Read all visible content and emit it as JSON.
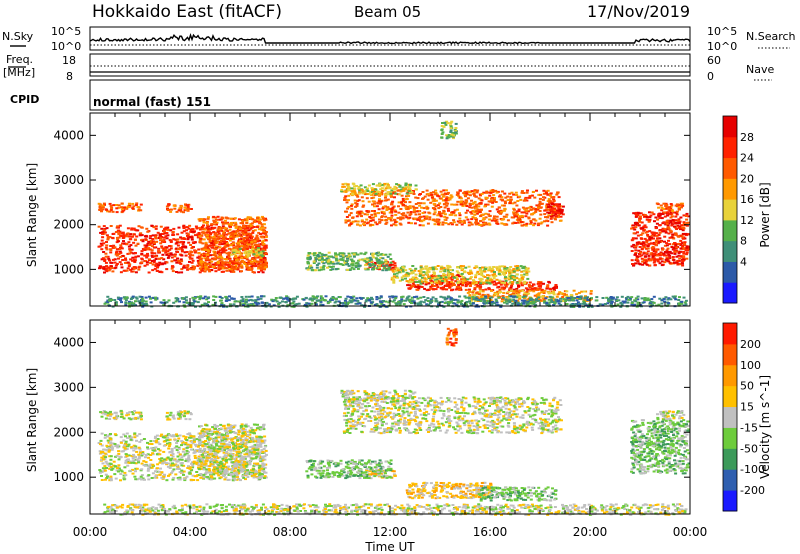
{
  "header": {
    "station": "Hokkaido East (fitACF)",
    "beam": "Beam 05",
    "date": "17/Nov/2019"
  },
  "top_panels": {
    "nsky_label": "N.Sky",
    "nsky_ticks": [
      "10^5",
      "10^0"
    ],
    "nsearch_label": "N.Search",
    "nsearch_ticks": [
      "10^5",
      "10^0"
    ],
    "freq_label": "Freq.",
    "freq_unit": "[MHz]",
    "freq_ticks": [
      "18",
      "8"
    ],
    "nave_label": "Nave",
    "nave_ticks": [
      "60",
      "0"
    ],
    "cpid_label": "CPID",
    "cpid_value": "normal (fast) 151"
  },
  "chart_data": [
    {
      "type": "heatmap",
      "panel": "power",
      "ylabel": "Slant Range [km]",
      "yticks": [
        "4000",
        "3000",
        "2000",
        "1000"
      ],
      "ylim": [
        180,
        4500
      ],
      "colorbar_label": "Power [dB]",
      "colorbar_ticks": [
        "28",
        "24",
        "20",
        "16",
        "12",
        "8",
        "4"
      ],
      "colors": [
        "#1a1aff",
        "#2c5aa8",
        "#3f8f78",
        "#55b04a",
        "#e8d23a",
        "#ff9900",
        "#ff5a00",
        "#ff2200",
        "#e60000"
      ],
      "patches": [
        {
          "t": [
            0.3,
            7.0
          ],
          "r": [
            950,
            2000
          ],
          "level": 7
        },
        {
          "t": [
            0.3,
            2.0
          ],
          "r": [
            2300,
            2500
          ],
          "level": 6
        },
        {
          "t": [
            3.0,
            4.0
          ],
          "r": [
            2300,
            2500
          ],
          "level": 6
        },
        {
          "t": [
            4.3,
            7.0
          ],
          "r": [
            1000,
            2200
          ],
          "level": 6
        },
        {
          "t": [
            5.6,
            6.9
          ],
          "r": [
            1300,
            1500
          ],
          "level": 4
        },
        {
          "t": [
            10.1,
            18.8
          ],
          "r": [
            2000,
            2800
          ],
          "level": 6
        },
        {
          "t": [
            18.2,
            18.9
          ],
          "r": [
            2200,
            2500
          ],
          "level": 8
        },
        {
          "t": [
            10.0,
            13.0
          ],
          "r": [
            2700,
            2950
          ],
          "level": 4
        },
        {
          "t": [
            21.6,
            23.9
          ],
          "r": [
            1100,
            2300
          ],
          "level": 7
        },
        {
          "t": [
            22.6,
            23.7
          ],
          "r": [
            2300,
            2500
          ],
          "level": 6
        },
        {
          "t": [
            11.0,
            12.2
          ],
          "r": [
            1000,
            1200
          ],
          "level": 7
        },
        {
          "t": [
            13.5,
            15.0
          ],
          "r": [
            700,
            900
          ],
          "level": 7
        },
        {
          "t": [
            12.6,
            18.6
          ],
          "r": [
            550,
            750
          ],
          "level": 7
        },
        {
          "t": [
            8.6,
            12.0
          ],
          "r": [
            1000,
            1400
          ],
          "level": 3
        },
        {
          "t": [
            12.0,
            17.5
          ],
          "r": [
            700,
            1100
          ],
          "level": 4
        },
        {
          "t": [
            15.0,
            20.0
          ],
          "r": [
            300,
            550
          ],
          "level": 5
        },
        {
          "t": [
            14.0,
            14.6
          ],
          "r": [
            3950,
            4350
          ],
          "level": 3
        },
        {
          "t": [
            0.5,
            23.8
          ],
          "r": [
            180,
            420
          ],
          "level": 2
        }
      ]
    },
    {
      "type": "heatmap",
      "panel": "velocity",
      "ylabel": "Slant Range [km]",
      "yticks": [
        "4000",
        "3000",
        "2000",
        "1000"
      ],
      "ylim": [
        180,
        4500
      ],
      "xlabel": "Time UT",
      "xticks": [
        "00:00",
        "04:00",
        "08:00",
        "12:00",
        "16:00",
        "20:00",
        "00:00"
      ],
      "xlim": [
        0,
        24
      ],
      "colorbar_label": "Velocity [m s^-1]",
      "colorbar_ticks": [
        "200",
        "100",
        "50",
        "15",
        "-15",
        "-50",
        "-100",
        "-200"
      ],
      "colors": [
        "#1a1aff",
        "#2f5fb0",
        "#3c9a5a",
        "#6dcc3c",
        "#c0c0c0",
        "#ffc000",
        "#ff9900",
        "#ff5a00",
        "#ff1a00"
      ],
      "patches": [
        {
          "t": [
            0.3,
            7.0
          ],
          "r": [
            950,
            2000
          ],
          "level": 4
        },
        {
          "t": [
            0.3,
            2.0
          ],
          "r": [
            2300,
            2500
          ],
          "level": 4
        },
        {
          "t": [
            3.0,
            4.0
          ],
          "r": [
            2300,
            2500
          ],
          "level": 4
        },
        {
          "t": [
            4.3,
            7.0
          ],
          "r": [
            1000,
            2200
          ],
          "level": 4
        },
        {
          "t": [
            10.1,
            18.8
          ],
          "r": [
            2000,
            2800
          ],
          "level": 4
        },
        {
          "t": [
            10.0,
            13.0
          ],
          "r": [
            2700,
            2950
          ],
          "level": 4
        },
        {
          "t": [
            21.6,
            23.9
          ],
          "r": [
            1100,
            2300
          ],
          "level": 3
        },
        {
          "t": [
            22.6,
            23.7
          ],
          "r": [
            2300,
            2500
          ],
          "level": 4
        },
        {
          "t": [
            11.0,
            12.2
          ],
          "r": [
            1000,
            1200
          ],
          "level": 5
        },
        {
          "t": [
            12.6,
            16.0
          ],
          "r": [
            550,
            900
          ],
          "level": 5
        },
        {
          "t": [
            15.5,
            18.6
          ],
          "r": [
            500,
            800
          ],
          "level": 3
        },
        {
          "t": [
            8.6,
            12.0
          ],
          "r": [
            1000,
            1400
          ],
          "level": 3
        },
        {
          "t": [
            14.2,
            14.6
          ],
          "r": [
            3950,
            4350
          ],
          "level": 7
        },
        {
          "t": [
            0.5,
            23.8
          ],
          "r": [
            180,
            420
          ],
          "level": 4
        }
      ]
    }
  ]
}
